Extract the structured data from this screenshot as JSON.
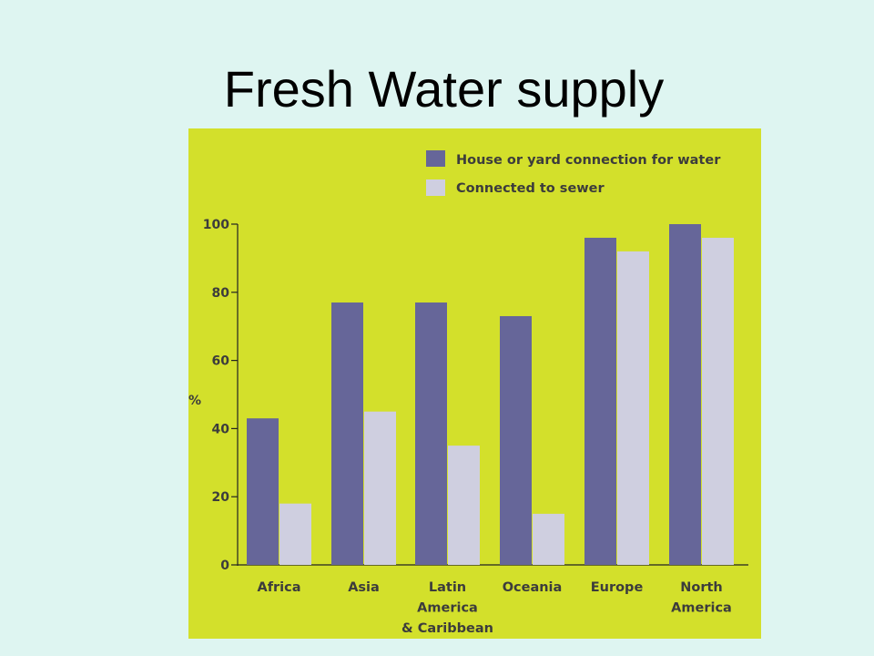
{
  "slide": {
    "title": "Fresh Water supply"
  },
  "colors": {
    "page_background": "#def5f1",
    "chart_background": "#d3e02b",
    "series_water": "#666699",
    "series_sewer": "#cfcfe0",
    "axis_text": "#3c3c3c",
    "axis_line": "#222222"
  },
  "chart_data": {
    "type": "bar",
    "title": "",
    "xlabel": "",
    "ylabel": "%",
    "ylim": [
      0,
      100
    ],
    "yticks": [
      "0",
      "20",
      "40",
      "60",
      "80",
      "100"
    ],
    "grid": false,
    "legend_position": "top-right",
    "categories": [
      [
        "Africa"
      ],
      [
        "Asia"
      ],
      [
        "Latin",
        "America",
        "& Caribbean"
      ],
      [
        "Oceania"
      ],
      [
        "Europe"
      ],
      [
        "North",
        "America"
      ]
    ],
    "series": [
      {
        "name": "House or yard connection for water",
        "values": [
          43,
          77,
          77,
          73,
          96,
          100
        ]
      },
      {
        "name": "Connected to sewer",
        "values": [
          18,
          45,
          35,
          15,
          92,
          96
        ]
      }
    ]
  }
}
